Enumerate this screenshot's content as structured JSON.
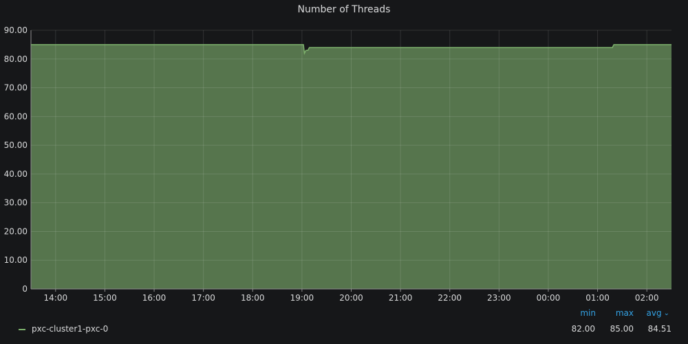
{
  "panel": {
    "title": "Number of Threads"
  },
  "chart_data": {
    "type": "area",
    "title": "Number of Threads",
    "xlabel": "",
    "ylabel": "",
    "ylim": [
      0,
      90
    ],
    "y_ticks": [
      "0",
      "10.00",
      "20.00",
      "30.00",
      "40.00",
      "50.00",
      "60.00",
      "70.00",
      "80.00",
      "90.00"
    ],
    "y_tick_values": [
      0,
      10,
      20,
      30,
      40,
      50,
      60,
      70,
      80,
      90
    ],
    "x_ticks": [
      "14:00",
      "15:00",
      "16:00",
      "17:00",
      "18:00",
      "19:00",
      "20:00",
      "21:00",
      "22:00",
      "23:00",
      "00:00",
      "01:00",
      "02:00"
    ],
    "x_tick_hours": [
      14,
      15,
      16,
      17,
      18,
      19,
      20,
      21,
      22,
      23,
      24,
      25,
      26
    ],
    "xlim_hours": [
      13.5,
      26.5
    ],
    "grid": true,
    "series": [
      {
        "name": "pxc-cluster1-pxc-0",
        "color": "#7eb26d",
        "fill_color": "#56754d",
        "x_hours": [
          13.5,
          19.03,
          19.05,
          19.08,
          19.12,
          19.15,
          25.3,
          25.33,
          26.5
        ],
        "values": [
          85,
          85,
          82,
          83,
          83,
          84,
          84,
          85,
          85
        ]
      }
    ]
  },
  "legend": {
    "headers": {
      "min": "min",
      "max": "max",
      "avg": "avg"
    },
    "items": [
      {
        "name": "pxc-cluster1-pxc-0",
        "min": "82.00",
        "max": "85.00",
        "avg": "84.51"
      }
    ]
  }
}
